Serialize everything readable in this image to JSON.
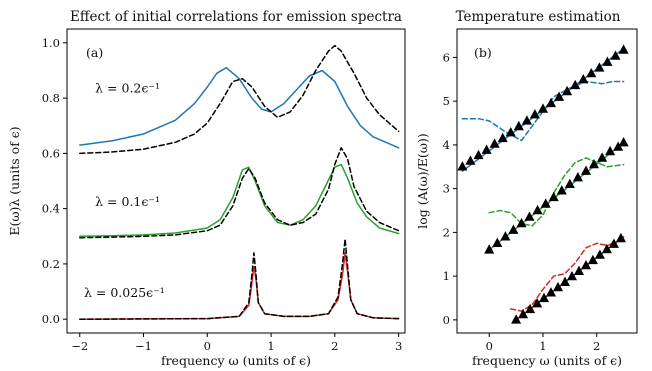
{
  "figure": {
    "background": "#ffffff"
  },
  "colors": {
    "blue": "#1f77b4",
    "green": "#2ca02c",
    "red": "#d62728",
    "black": "#000000"
  },
  "chart_data": [
    {
      "type": "line",
      "panel_label": "(a)",
      "title": "Effect of initial correlations for emission spectra",
      "xlabel": "frequency ω (units of ϵ)",
      "ylabel": "E(ω)λ (units of ϵ)",
      "xlim": [
        -2.2,
        3.1
      ],
      "ylim": [
        -0.05,
        1.05
      ],
      "xticks": [
        -2,
        -1,
        0,
        1,
        2,
        3
      ],
      "xtick_labels": [
        "−2",
        "−1",
        "0",
        "1",
        "2",
        "3"
      ],
      "yticks": [
        0.0,
        0.2,
        0.4,
        0.6,
        0.8,
        1.0
      ],
      "ytick_labels": [
        "0.0",
        "0.2",
        "0.4",
        "0.6",
        "0.8",
        "1.0"
      ],
      "annotations": [
        {
          "text": "λ = 0.2ϵ⁻¹",
          "x": -1.25,
          "y": 0.82
        },
        {
          "text": "λ = 0.1ϵ⁻¹",
          "x": -1.25,
          "y": 0.41
        },
        {
          "text": "λ = 0.025ϵ⁻¹",
          "x": -1.3,
          "y": 0.08
        }
      ],
      "series": [
        {
          "color": "blue",
          "style": "solid",
          "x": [
            -2.0,
            -1.5,
            -1.0,
            -0.5,
            -0.2,
            0.0,
            0.15,
            0.3,
            0.5,
            0.7,
            0.85,
            1.0,
            1.2,
            1.4,
            1.6,
            1.8,
            2.0,
            2.2,
            2.4,
            2.6,
            3.0
          ],
          "y": [
            0.63,
            0.645,
            0.67,
            0.72,
            0.78,
            0.84,
            0.89,
            0.91,
            0.87,
            0.8,
            0.76,
            0.75,
            0.78,
            0.83,
            0.88,
            0.9,
            0.86,
            0.77,
            0.7,
            0.66,
            0.62
          ]
        },
        {
          "color": "black",
          "style": "dashed",
          "x": [
            -2.0,
            -1.5,
            -1.0,
            -0.5,
            -0.2,
            0.0,
            0.2,
            0.4,
            0.55,
            0.7,
            0.9,
            1.1,
            1.3,
            1.5,
            1.7,
            1.9,
            2.0,
            2.1,
            2.3,
            2.5,
            2.7,
            3.0
          ],
          "y": [
            0.6,
            0.605,
            0.615,
            0.64,
            0.67,
            0.71,
            0.78,
            0.86,
            0.87,
            0.84,
            0.77,
            0.73,
            0.75,
            0.81,
            0.9,
            0.97,
            0.99,
            0.97,
            0.89,
            0.8,
            0.74,
            0.68
          ]
        },
        {
          "color": "green",
          "style": "solid",
          "x": [
            -2.0,
            -1.5,
            -1.0,
            -0.5,
            0.0,
            0.2,
            0.4,
            0.55,
            0.65,
            0.75,
            0.9,
            1.1,
            1.3,
            1.5,
            1.7,
            1.85,
            2.0,
            2.1,
            2.2,
            2.35,
            2.5,
            2.7,
            3.0
          ],
          "y": [
            0.3,
            0.302,
            0.305,
            0.312,
            0.33,
            0.36,
            0.44,
            0.54,
            0.55,
            0.5,
            0.41,
            0.35,
            0.34,
            0.36,
            0.41,
            0.48,
            0.55,
            0.56,
            0.51,
            0.42,
            0.37,
            0.33,
            0.31
          ]
        },
        {
          "color": "black",
          "style": "dashed",
          "x": [
            -2.0,
            -1.5,
            -1.0,
            -0.5,
            0.0,
            0.2,
            0.4,
            0.55,
            0.65,
            0.75,
            0.9,
            1.1,
            1.3,
            1.5,
            1.7,
            1.9,
            2.0,
            2.1,
            2.2,
            2.3,
            2.5,
            2.7,
            3.0
          ],
          "y": [
            0.295,
            0.297,
            0.3,
            0.305,
            0.32,
            0.34,
            0.41,
            0.51,
            0.545,
            0.51,
            0.42,
            0.36,
            0.34,
            0.35,
            0.38,
            0.47,
            0.56,
            0.62,
            0.58,
            0.48,
            0.39,
            0.35,
            0.32
          ]
        },
        {
          "color": "red",
          "style": "solid",
          "x": [
            -2.0,
            0.0,
            0.5,
            0.65,
            0.7,
            0.73,
            0.76,
            0.8,
            0.9,
            1.2,
            1.6,
            1.9,
            2.05,
            2.12,
            2.16,
            2.2,
            2.25,
            2.35,
            2.6,
            3.0
          ],
          "y": [
            0.0,
            0.002,
            0.01,
            0.05,
            0.13,
            0.19,
            0.15,
            0.06,
            0.02,
            0.01,
            0.01,
            0.02,
            0.07,
            0.16,
            0.24,
            0.17,
            0.07,
            0.02,
            0.005,
            0.002
          ]
        },
        {
          "color": "black",
          "style": "dashed",
          "x": [
            -2.0,
            0.0,
            0.5,
            0.65,
            0.7,
            0.73,
            0.76,
            0.8,
            0.9,
            1.2,
            1.6,
            1.9,
            2.05,
            2.12,
            2.16,
            2.2,
            2.25,
            2.35,
            2.6,
            3.0
          ],
          "y": [
            0.0,
            0.002,
            0.01,
            0.06,
            0.16,
            0.24,
            0.17,
            0.06,
            0.02,
            0.01,
            0.01,
            0.02,
            0.08,
            0.2,
            0.29,
            0.19,
            0.07,
            0.02,
            0.005,
            0.002
          ]
        }
      ]
    },
    {
      "type": "line",
      "panel_label": "(b)",
      "title": "Temperature estimation",
      "xlabel": "frequency ω (units of ϵ)",
      "ylabel": "log (A(ω)/E(ω))",
      "xlim": [
        -0.6,
        2.75
      ],
      "ylim": [
        -0.3,
        6.65
      ],
      "xticks": [
        0,
        1,
        2
      ],
      "xtick_labels": [
        "0",
        "1",
        "2"
      ],
      "yticks": [
        0,
        1,
        2,
        3,
        4,
        5,
        6
      ],
      "ytick_labels": [
        "0",
        "1",
        "2",
        "3",
        "4",
        "5",
        "6"
      ],
      "series": [
        {
          "color": "blue",
          "style": "solid",
          "x": [
            -0.5,
            2.5
          ],
          "y": [
            3.4,
            6.2
          ]
        },
        {
          "color": "blue",
          "style": "dashed",
          "x": [
            -0.5,
            -0.2,
            0.0,
            0.3,
            0.6,
            0.9,
            1.2,
            1.5,
            1.8,
            2.1,
            2.3,
            2.5
          ],
          "y": [
            4.6,
            4.6,
            4.55,
            4.3,
            4.1,
            4.6,
            5.1,
            5.3,
            5.45,
            5.4,
            5.45,
            5.45
          ]
        },
        {
          "color": "black",
          "style": "markers",
          "marker": "triangle",
          "x": [
            -0.5,
            -0.35,
            -0.2,
            -0.05,
            0.1,
            0.25,
            0.4,
            0.55,
            0.7,
            0.85,
            1.0,
            1.15,
            1.3,
            1.45,
            1.6,
            1.75,
            1.9,
            2.05,
            2.2,
            2.35,
            2.5
          ],
          "y": [
            3.5,
            3.63,
            3.76,
            3.88,
            4.02,
            4.15,
            4.28,
            4.42,
            4.55,
            4.69,
            4.82,
            4.95,
            5.09,
            5.22,
            5.36,
            5.49,
            5.63,
            5.76,
            5.89,
            6.03,
            6.17
          ]
        },
        {
          "color": "green",
          "style": "solid",
          "x": [
            0.0,
            2.5
          ],
          "y": [
            1.6,
            4.05
          ]
        },
        {
          "color": "green",
          "style": "dashed",
          "x": [
            0.0,
            0.2,
            0.4,
            0.6,
            0.8,
            1.0,
            1.2,
            1.4,
            1.6,
            1.8,
            2.0,
            2.2,
            2.5
          ],
          "y": [
            2.45,
            2.5,
            2.45,
            2.2,
            2.15,
            2.4,
            2.9,
            3.3,
            3.6,
            3.7,
            3.6,
            3.5,
            3.55
          ]
        },
        {
          "color": "black",
          "style": "markers",
          "marker": "triangle",
          "x": [
            0.0,
            0.15,
            0.3,
            0.45,
            0.6,
            0.75,
            0.9,
            1.05,
            1.2,
            1.35,
            1.5,
            1.65,
            1.8,
            1.95,
            2.1,
            2.25,
            2.4,
            2.5
          ],
          "y": [
            1.6,
            1.75,
            1.9,
            2.05,
            2.2,
            2.35,
            2.5,
            2.65,
            2.8,
            2.95,
            3.1,
            3.25,
            3.4,
            3.55,
            3.7,
            3.85,
            3.95,
            4.05
          ]
        },
        {
          "color": "red",
          "style": "solid",
          "x": [
            0.5,
            2.5
          ],
          "y": [
            0.0,
            1.9
          ]
        },
        {
          "color": "red",
          "style": "dashed",
          "x": [
            0.4,
            0.6,
            0.8,
            1.0,
            1.2,
            1.4,
            1.6,
            1.8,
            2.0,
            2.2,
            2.5
          ],
          "y": [
            0.25,
            0.2,
            0.35,
            0.7,
            1.0,
            1.05,
            1.3,
            1.65,
            1.75,
            1.7,
            1.85
          ]
        },
        {
          "color": "black",
          "style": "markers",
          "marker": "triangle",
          "x": [
            0.5,
            0.63,
            0.76,
            0.89,
            1.02,
            1.15,
            1.28,
            1.41,
            1.54,
            1.67,
            1.8,
            1.93,
            2.06,
            2.19,
            2.32,
            2.45
          ],
          "y": [
            0.0,
            0.12,
            0.24,
            0.37,
            0.49,
            0.62,
            0.74,
            0.86,
            0.99,
            1.11,
            1.24,
            1.36,
            1.48,
            1.61,
            1.73,
            1.86
          ]
        }
      ]
    }
  ]
}
